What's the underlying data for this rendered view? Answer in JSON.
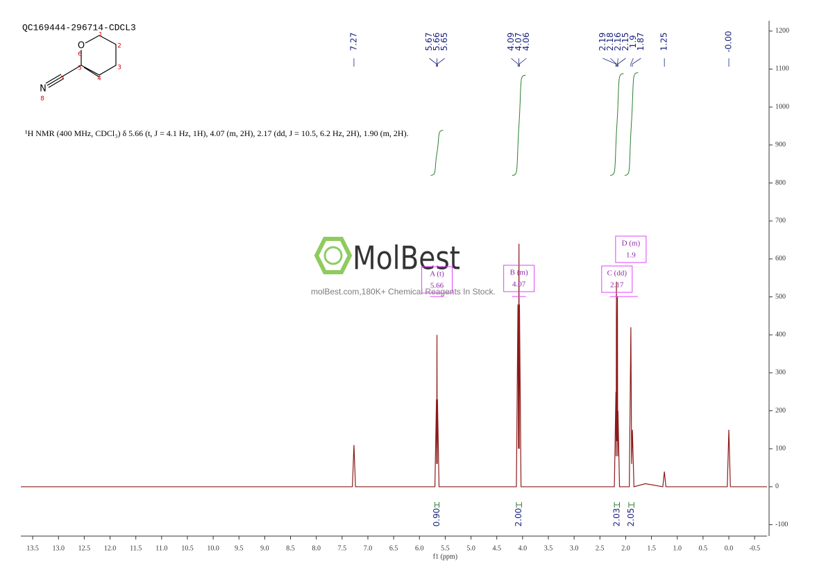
{
  "chart_data": {
    "type": "line",
    "title": "QC169444-296714-CDCL3",
    "xlabel": "f1 (ppm)",
    "annotation": "¹H NMR (400 MHz, CDCl₃) δ 5.66 (t, J = 4.1 Hz, 1H), 4.07 (m, 2H), 2.17 (dd, J = 10.5, 6.2 Hz, 2H), 1.90 (m, 2H).",
    "xlim": [
      13.73,
      -0.74
    ],
    "ylim": [
      -130,
      1227
    ],
    "xticks": [
      13.5,
      {
        "value": 13,
        "label": "13.0"
      },
      12.5,
      {
        "value": 12,
        "label": "12.0"
      },
      11.5,
      {
        "value": 11,
        "label": "11.0"
      },
      10.5,
      {
        "value": 10,
        "label": "10.0"
      },
      9.5,
      {
        "value": 9,
        "label": "9.0"
      },
      8.5,
      {
        "value": 8,
        "label": "8.0"
      },
      7.5,
      {
        "value": 7,
        "label": "7.0"
      },
      6.5,
      {
        "value": 6,
        "label": "6.0"
      },
      5.5,
      {
        "value": 5,
        "label": "5.0"
      },
      4.5,
      {
        "value": 4,
        "label": "4.0"
      },
      3.5,
      {
        "value": 3,
        "label": "3.0"
      },
      2.5,
      {
        "value": 2,
        "label": "2.0"
      },
      1.5,
      {
        "value": 1,
        "label": "1.0"
      },
      0.5,
      {
        "value": 0,
        "label": "0.0"
      },
      -0.5
    ],
    "yticks": [
      -100,
      0,
      100,
      200,
      300,
      400,
      500,
      600,
      700,
      800,
      900,
      1000,
      1100,
      1200
    ],
    "series": [
      {
        "name": "spectrum",
        "color": "#8b1a1a",
        "x": [
          13.73,
          7.3,
          7.27,
          7.24,
          5.7,
          5.67,
          5.665,
          5.66,
          5.655,
          5.65,
          5.62,
          4.12,
          4.09,
          4.08,
          4.07,
          4.065,
          4.06,
          4.03,
          2.22,
          2.19,
          2.185,
          2.18,
          2.17,
          2.16,
          2.155,
          2.15,
          2.12,
          1.93,
          1.9,
          1.885,
          1.87,
          1.84,
          1.62,
          1.28,
          1.25,
          1.22,
          0.03,
          0.0,
          -0.03,
          -0.74
        ],
        "values": [
          0,
          0,
          110,
          0,
          0,
          230,
          60,
          400,
          60,
          230,
          0,
          0,
          480,
          100,
          640,
          100,
          480,
          0,
          0,
          250,
          80,
          540,
          120,
          500,
          80,
          200,
          0,
          0,
          420,
          60,
          150,
          0,
          8,
          0,
          40,
          0,
          0,
          150,
          0,
          0
        ]
      }
    ],
    "peak_labels": [
      7.27,
      5.67,
      5.66,
      5.65,
      4.09,
      4.07,
      4.06,
      2.19,
      2.18,
      2.16,
      2.15,
      1.9,
      1.87,
      1.25,
      {
        "value": 0,
        "label": "-0.00"
      }
    ],
    "integrals": [
      {
        "from": 5.7,
        "to": 5.62,
        "value": 0.9,
        "label": "0.90"
      },
      {
        "from": 4.12,
        "to": 4.02,
        "value": 2,
        "label": "2.00"
      },
      {
        "from": 2.22,
        "to": 2.12,
        "value": 2.03,
        "label": "2.03"
      },
      {
        "from": 1.94,
        "to": 1.84,
        "value": 2.05,
        "label": "2.05"
      }
    ],
    "multiplets": [
      {
        "name": "A (t)",
        "shift": 5.66
      },
      {
        "name": "B (m)",
        "shift": 4.07
      },
      {
        "name": "C (dd)",
        "shift": 2.17
      },
      {
        "name": "D (m)",
        "shift": 1.9
      }
    ]
  },
  "watermark": {
    "logo": "MolBest",
    "tagline": "molBest.com,180K+ Chemical Reagents In Stock."
  },
  "structure": {
    "atoms": [
      "O",
      "N"
    ],
    "numbers": [
      "1",
      "2",
      "3",
      "4",
      "5",
      "6",
      "7",
      "8"
    ]
  }
}
